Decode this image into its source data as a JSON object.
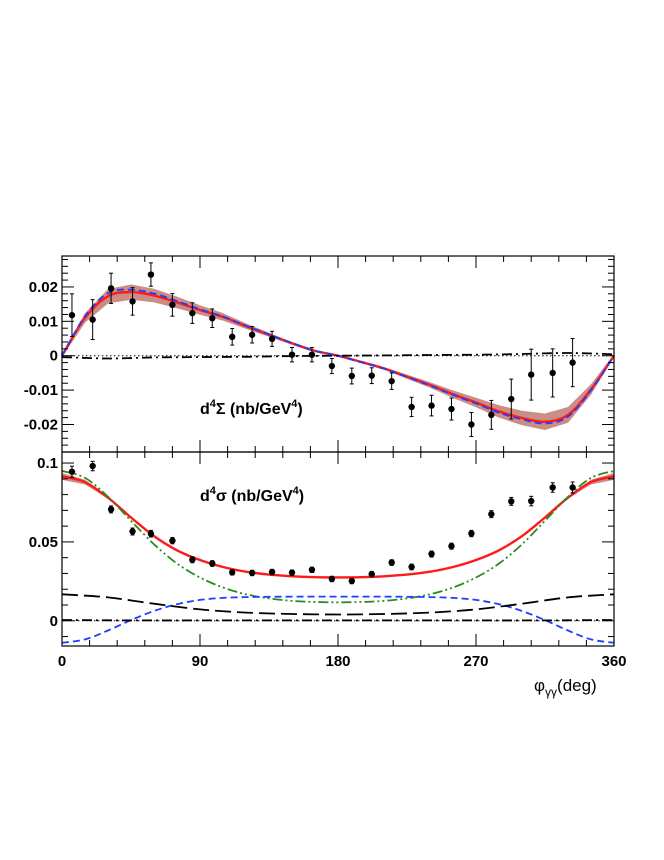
{
  "chart_data": [
    {
      "type": "line",
      "panel": "top",
      "panel_label": {
        "prefix": "d",
        "sup1": "4",
        "symbol": "Σ",
        "unit_text": " (nb/GeV",
        "unit_sup": "4",
        "unit_close": ")"
      },
      "xlim": [
        0,
        360
      ],
      "ylim": [
        -0.028,
        0.029
      ],
      "yticks": [
        -0.02,
        -0.01,
        0,
        0.01,
        0.02
      ],
      "ytick_labels": [
        "-0.02",
        "-0.01",
        "0",
        "0.01",
        "0.02"
      ],
      "grid": false,
      "data_points": {
        "x": [
          6.5,
          20,
          32,
          46,
          58,
          72,
          85,
          98,
          111,
          124,
          137,
          150,
          163,
          176,
          189,
          202,
          215,
          228,
          241,
          254,
          267,
          280,
          293,
          306,
          320,
          333
        ],
        "y": [
          0.0118,
          0.0105,
          0.0196,
          0.0158,
          0.0236,
          0.0148,
          0.0124,
          0.0109,
          0.0055,
          0.0061,
          0.0049,
          0.0003,
          0.0003,
          -0.003,
          -0.0059,
          -0.0058,
          -0.0074,
          -0.0149,
          -0.0145,
          -0.0155,
          -0.02,
          -0.0172,
          -0.0126,
          -0.0055,
          -0.005,
          -0.002
        ],
        "yerr": [
          0.0062,
          0.0058,
          0.0044,
          0.004,
          0.0034,
          0.0033,
          0.003,
          0.0027,
          0.0024,
          0.0024,
          0.0022,
          0.0021,
          0.0021,
          0.0022,
          0.0023,
          0.0023,
          0.0024,
          0.0028,
          0.003,
          0.0032,
          0.0035,
          0.0042,
          0.0058,
          0.0074,
          0.007,
          0.007
        ]
      },
      "series": [
        {
          "name": "total fit (red)",
          "color": "#ff1a1a",
          "style": "solid",
          "x": [
            0,
            15,
            30,
            45,
            60,
            75,
            90,
            105,
            120,
            135,
            150,
            165,
            180,
            195,
            210,
            225,
            240,
            255,
            270,
            285,
            300,
            315,
            330,
            345,
            360
          ],
          "y": [
            0,
            0.011,
            0.0173,
            0.0185,
            0.0175,
            0.0155,
            0.0133,
            0.0113,
            0.0086,
            0.0061,
            0.0036,
            0.0014,
            0,
            -0.0018,
            -0.0037,
            -0.0061,
            -0.0085,
            -0.0112,
            -0.0136,
            -0.0162,
            -0.0181,
            -0.0192,
            -0.0172,
            -0.0098,
            0
          ]
        },
        {
          "name": "alternative (blue dashed)",
          "color": "#1f3fff",
          "style": "dashed",
          "x": [
            0,
            15,
            30,
            45,
            60,
            75,
            90,
            105,
            120,
            135,
            150,
            165,
            180,
            195,
            210,
            225,
            240,
            255,
            270,
            285,
            300,
            315,
            330,
            345,
            360
          ],
          "y": [
            0,
            0.0115,
            0.0182,
            0.0192,
            0.0181,
            0.0159,
            0.0135,
            0.0114,
            0.0087,
            0.0062,
            0.0037,
            0.0014,
            0,
            -0.0019,
            -0.0038,
            -0.0062,
            -0.0087,
            -0.0114,
            -0.0139,
            -0.0166,
            -0.0185,
            -0.0197,
            -0.0177,
            -0.0101,
            0
          ]
        },
        {
          "name": "small contribution (black dash-dot)",
          "color": "#000000",
          "style": "dashdot",
          "x": [
            0,
            30,
            60,
            90,
            120,
            150,
            180,
            210,
            240,
            270,
            300,
            330,
            360
          ],
          "y": [
            -0.0004,
            -0.0008,
            -0.0005,
            -0.0004,
            -0.0003,
            -0.0001,
            0,
            0.0001,
            0.0002,
            0.0003,
            0.0005,
            0.0008,
            0.0004
          ]
        },
        {
          "name": "zero line (dotted)",
          "color": "#000000",
          "style": "dotted",
          "x": [
            0,
            360
          ],
          "y": [
            0,
            0
          ]
        }
      ],
      "band": {
        "name": "uncertainty band",
        "color": "#b8685e",
        "x": [
          0,
          15,
          30,
          45,
          60,
          75,
          90,
          105,
          120,
          135,
          150,
          165,
          180,
          195,
          210,
          225,
          240,
          255,
          270,
          285,
          300,
          315,
          330,
          345,
          360
        ],
        "y": [
          0,
          0.011,
          0.0173,
          0.0185,
          0.0175,
          0.0155,
          0.0133,
          0.0113,
          0.0086,
          0.0061,
          0.0036,
          0.0014,
          0,
          -0.0018,
          -0.0037,
          -0.0061,
          -0.0085,
          -0.0112,
          -0.0136,
          -0.0162,
          -0.0181,
          -0.0192,
          -0.0172,
          -0.0098,
          0
        ],
        "halfwidth": [
          0.0005,
          0.0014,
          0.0021,
          0.0022,
          0.002,
          0.0017,
          0.0014,
          0.0011,
          0.0008,
          0.0006,
          0.0004,
          0.0003,
          0.0003,
          0.0003,
          0.0004,
          0.0006,
          0.0008,
          0.0011,
          0.0014,
          0.0018,
          0.0021,
          0.0024,
          0.0023,
          0.0015,
          0.0005
        ]
      }
    },
    {
      "type": "line",
      "panel": "bottom",
      "panel_label": {
        "prefix": "d",
        "sup1": "4",
        "symbol": "σ",
        "unit_text": " (nb/GeV",
        "unit_sup": "4",
        "unit_close": ")"
      },
      "xlim": [
        0,
        360
      ],
      "ylim": [
        -0.016,
        0.107
      ],
      "xticks": [
        0,
        90,
        180,
        270,
        360
      ],
      "xtick_labels": [
        "0",
        "90",
        "180",
        "270",
        "360"
      ],
      "xlabel": {
        "main": "φ",
        "sub": "γγ",
        "unit": "(deg)"
      },
      "yticks": [
        0,
        0.05,
        0.1
      ],
      "ytick_labels": [
        "0",
        "0.05",
        "0.1"
      ],
      "grid": false,
      "data_points": {
        "x": [
          6.5,
          20,
          32,
          46,
          58,
          72,
          85,
          98,
          111,
          124,
          137,
          150,
          163,
          176,
          189,
          202,
          215,
          228,
          241,
          254,
          267,
          280,
          293,
          306,
          320,
          333
        ],
        "y": [
          0.0945,
          0.0981,
          0.0706,
          0.0566,
          0.0552,
          0.0508,
          0.0387,
          0.0363,
          0.0307,
          0.0303,
          0.0309,
          0.0305,
          0.0323,
          0.0265,
          0.0252,
          0.0296,
          0.0369,
          0.0341,
          0.0423,
          0.0473,
          0.0553,
          0.0676,
          0.0757,
          0.0759,
          0.0845,
          0.0845
        ],
        "yerr": [
          0.0035,
          0.003,
          0.0022,
          0.0022,
          0.0021,
          0.002,
          0.0019,
          0.0018,
          0.0017,
          0.0017,
          0.0017,
          0.0017,
          0.0017,
          0.0017,
          0.0017,
          0.0017,
          0.0018,
          0.0018,
          0.0019,
          0.0019,
          0.002,
          0.0022,
          0.0025,
          0.003,
          0.003,
          0.0035
        ]
      },
      "series": [
        {
          "name": "total fit (red)",
          "color": "#ff1a1a",
          "style": "solid",
          "x": [
            0,
            15,
            30,
            45,
            60,
            75,
            90,
            105,
            120,
            135,
            150,
            165,
            180,
            195,
            210,
            225,
            240,
            255,
            270,
            285,
            300,
            315,
            330,
            345,
            360
          ],
          "y": [
            0.0915,
            0.0879,
            0.078,
            0.0655,
            0.0537,
            0.0447,
            0.0385,
            0.0341,
            0.0311,
            0.0293,
            0.0282,
            0.0276,
            0.0275,
            0.0276,
            0.0282,
            0.0293,
            0.0311,
            0.0341,
            0.0385,
            0.0447,
            0.0537,
            0.0655,
            0.078,
            0.0879,
            0.0915
          ]
        },
        {
          "name": "dominant term (green dash-dot)",
          "color": "#2a8a1e",
          "style": "dashdotdot",
          "x": [
            0,
            15,
            30,
            45,
            60,
            75,
            90,
            105,
            120,
            135,
            150,
            165,
            180,
            195,
            210,
            225,
            240,
            255,
            270,
            285,
            300,
            315,
            330,
            345,
            360
          ],
          "y": [
            0.095,
            0.0906,
            0.0786,
            0.0634,
            0.0485,
            0.0363,
            0.0274,
            0.0211,
            0.0168,
            0.0142,
            0.0126,
            0.0119,
            0.0117,
            0.0119,
            0.0126,
            0.0142,
            0.0168,
            0.0211,
            0.0274,
            0.0363,
            0.0485,
            0.0634,
            0.0786,
            0.0906,
            0.095
          ]
        },
        {
          "name": "interference (blue dashed)",
          "color": "#1f3fff",
          "style": "dashed",
          "x": [
            0,
            15,
            30,
            45,
            60,
            75,
            90,
            105,
            120,
            135,
            150,
            165,
            180,
            195,
            210,
            225,
            240,
            255,
            270,
            285,
            300,
            315,
            330,
            345,
            360
          ],
          "y": [
            -0.014,
            -0.0118,
            -0.0062,
            0.0004,
            0.0062,
            0.0105,
            0.0132,
            0.0145,
            0.015,
            0.0152,
            0.0153,
            0.0153,
            0.0153,
            0.0153,
            0.0153,
            0.0152,
            0.015,
            0.0145,
            0.0132,
            0.0105,
            0.0062,
            0.0004,
            -0.0062,
            -0.0118,
            -0.014
          ]
        },
        {
          "name": "long dash term",
          "color": "#000000",
          "style": "longdash",
          "x": [
            0,
            30,
            60,
            90,
            120,
            150,
            180,
            210,
            240,
            270,
            300,
            330,
            360
          ],
          "y": [
            0.0168,
            0.0148,
            0.0108,
            0.0072,
            0.0052,
            0.0043,
            0.004,
            0.0043,
            0.0052,
            0.0072,
            0.0108,
            0.0148,
            0.0168
          ]
        },
        {
          "name": "small term (black dash-dot)",
          "color": "#000000",
          "style": "dashdot",
          "x": [
            0,
            30,
            60,
            90,
            120,
            150,
            180,
            210,
            240,
            270,
            300,
            330,
            360
          ],
          "y": [
            0.0005,
            0.0003,
            0.0002,
            0.0002,
            0.0002,
            0.0002,
            0.0002,
            0.0002,
            0.0002,
            0.0002,
            0.0002,
            0.0003,
            0.0005
          ]
        },
        {
          "name": "zero line (dotted)",
          "color": "#000000",
          "style": "dotted",
          "x": [
            0,
            360
          ],
          "y": [
            0,
            0
          ]
        }
      ],
      "band": {
        "name": "uncertainty band",
        "color": "#b8685e",
        "x": [
          0,
          15,
          30,
          45,
          60,
          75,
          90,
          105,
          120,
          135,
          150,
          165,
          180,
          195,
          210,
          225,
          240,
          255,
          270,
          285,
          300,
          315,
          330,
          345,
          360
        ],
        "y": [
          0.0915,
          0.0879,
          0.078,
          0.0655,
          0.0537,
          0.0447,
          0.0385,
          0.0341,
          0.0311,
          0.0293,
          0.0282,
          0.0276,
          0.0275,
          0.0276,
          0.0282,
          0.0293,
          0.0311,
          0.0341,
          0.0385,
          0.0447,
          0.0537,
          0.0655,
          0.078,
          0.0879,
          0.0915
        ],
        "halfwidth": [
          0.0022,
          0.0015,
          0.0006,
          0.0004,
          0.0004,
          0.0004,
          0.0004,
          0.0004,
          0.0004,
          0.0004,
          0.0004,
          0.0004,
          0.0004,
          0.0004,
          0.0004,
          0.0004,
          0.0004,
          0.0004,
          0.0004,
          0.0004,
          0.0004,
          0.0004,
          0.0006,
          0.0015,
          0.0022
        ]
      }
    }
  ]
}
